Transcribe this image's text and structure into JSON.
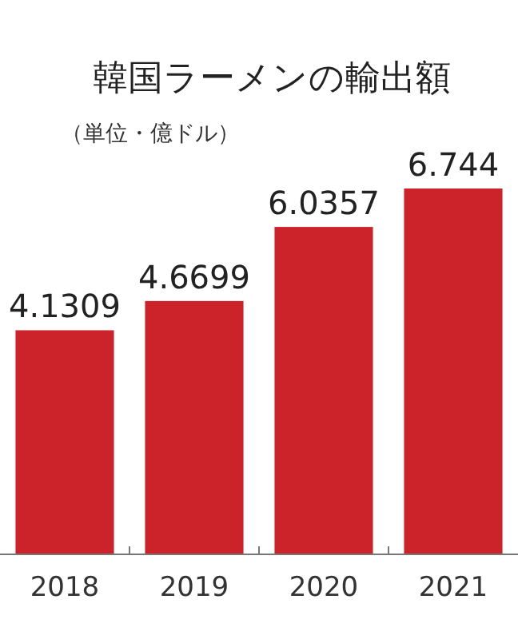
{
  "chart_data": {
    "type": "bar",
    "title": "韓国ラーメンの輸出額",
    "subtitle": "（単位・億ドル）",
    "categories": [
      "2018",
      "2019",
      "2020",
      "2021"
    ],
    "values": [
      4.1309,
      4.6699,
      6.0357,
      6.744
    ],
    "color": "#cc2229",
    "data_labels": true
  }
}
